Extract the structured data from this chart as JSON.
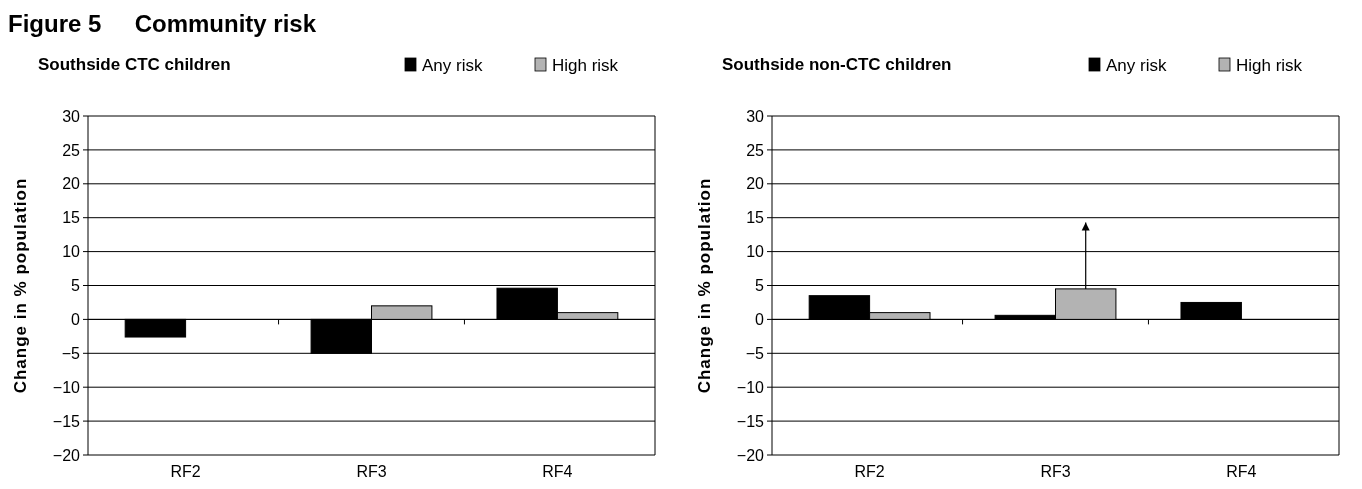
{
  "chart_data": [
    {
      "type": "bar",
      "title": "Figure 5     Community risk",
      "subtitle": "Southside CTC children",
      "ylabel": "Change in % population",
      "categories": [
        "RF2",
        "RF3",
        "RF4"
      ],
      "series": [
        {
          "name": "Any risk",
          "color": "#000000",
          "values": [
            -2.6,
            -5,
            4.6
          ]
        },
        {
          "name": "High risk",
          "color": "#b3b3b3",
          "values": [
            null,
            2,
            1
          ]
        }
      ],
      "ylim": [
        -20,
        30
      ],
      "yticks": [
        {
          "value": -20,
          "label": "−20"
        },
        {
          "value": -15,
          "label": "−15"
        },
        {
          "value": -10,
          "label": "−10"
        },
        {
          "value": -5,
          "label": "−5"
        },
        0,
        5,
        10,
        15,
        20,
        25,
        30
      ],
      "grid": "y",
      "legend": "top right"
    },
    {
      "type": "bar",
      "subtitle": "Southside non-CTC children",
      "ylabel": "Change in % population",
      "categories": [
        "RF2",
        "RF3",
        "RF4"
      ],
      "series": [
        {
          "name": "Any risk",
          "color": "#000000",
          "values": [
            3.5,
            0.6,
            2.5
          ]
        },
        {
          "name": "High risk",
          "color": "#b3b3b3",
          "values": [
            1,
            4.5,
            null
          ],
          "errors": [
            null,
            [
              4.5,
              14.3
            ],
            null
          ]
        }
      ],
      "ylim": [
        -20,
        30
      ],
      "yticks": [
        {
          "value": -20,
          "label": "−20"
        },
        {
          "value": -15,
          "label": "−15"
        },
        {
          "value": -10,
          "label": "−10"
        },
        {
          "value": -5,
          "label": "−5"
        },
        0,
        5,
        10,
        15,
        20,
        25,
        30
      ],
      "grid": "y",
      "legend": "top right"
    }
  ]
}
